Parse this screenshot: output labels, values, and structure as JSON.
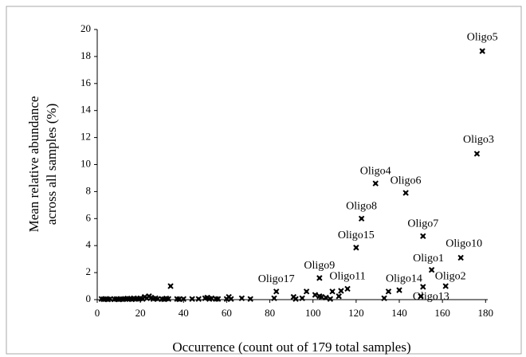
{
  "chart_data": {
    "type": "scatter",
    "xlabel": "Occurrence (count out of 179 total samples)",
    "ylabel": [
      "Mean relative abundance",
      "across all samples (%)"
    ],
    "xlim": [
      0,
      181
    ],
    "ylim": [
      0,
      20
    ],
    "xticks": [
      0,
      20,
      40,
      60,
      80,
      100,
      120,
      140,
      160,
      180
    ],
    "yticks": [
      0,
      2,
      4,
      6,
      8,
      10,
      12,
      14,
      16,
      18,
      20
    ],
    "grid": false,
    "series": [
      {
        "color": "#000000",
        "x": [
          178.5,
          176,
          129,
          143,
          122.5,
          151,
          120,
          168.5,
          155,
          103,
          161.5,
          116,
          140,
          83,
          151,
          2,
          3,
          4,
          5,
          6,
          8,
          9,
          10,
          11,
          12,
          13,
          14,
          15,
          16,
          17,
          18,
          19,
          20,
          21,
          22,
          23,
          24,
          25,
          26,
          27,
          28,
          30,
          31,
          32,
          33,
          34,
          37,
          38,
          40,
          44,
          47,
          50,
          51,
          52,
          53,
          55,
          56,
          60,
          61,
          62,
          67,
          71,
          82,
          91,
          92,
          95,
          97,
          101,
          103,
          104,
          106,
          108,
          109,
          112,
          113,
          133,
          135,
          150
        ],
        "values": [
          18.4,
          10.8,
          8.6,
          7.9,
          6.0,
          4.7,
          3.85,
          3.1,
          2.2,
          1.6,
          1.0,
          0.8,
          0.7,
          0.6,
          0.95,
          0.05,
          0.03,
          0.05,
          0.02,
          0.05,
          0.03,
          0.05,
          0.02,
          0.05,
          0.03,
          0.05,
          0.08,
          0.05,
          0.03,
          0.1,
          0.05,
          0.05,
          0.1,
          0.05,
          0.2,
          0.1,
          0.25,
          0.15,
          0.05,
          0.1,
          0.05,
          0.05,
          0.03,
          0.08,
          0.05,
          1.0,
          0.05,
          0.03,
          0.05,
          0.05,
          0.05,
          0.1,
          0.15,
          0.05,
          0.1,
          0.05,
          0.05,
          0.05,
          0.2,
          0.05,
          0.1,
          0.05,
          0.1,
          0.2,
          0.05,
          0.1,
          0.6,
          0.35,
          0.25,
          0.2,
          0.15,
          0.05,
          0.6,
          0.25,
          0.65,
          0.1,
          0.6,
          0.25
        ],
        "labels": [
          "Oligo5",
          "Oligo3",
          "Oligo4",
          "Oligo6",
          "Oligo8",
          "Oligo7",
          "Oligo15",
          "Oligo10",
          "Oligo1",
          "Oligo9",
          "Oligo2",
          "Oligo11",
          "Oligo14",
          "Oligo17",
          "Oligo13",
          null,
          null,
          null,
          null,
          null,
          null,
          null,
          null,
          null,
          null,
          null,
          null,
          null,
          null,
          null,
          null,
          null,
          null,
          null,
          null,
          null,
          null,
          null,
          null,
          null,
          null,
          null,
          null,
          null,
          null,
          null,
          null,
          null,
          null,
          null,
          null,
          null,
          null,
          null,
          null,
          null,
          null,
          null,
          null,
          null,
          null,
          null,
          null,
          null,
          null,
          null,
          null,
          null,
          null,
          null,
          null,
          null,
          null,
          null,
          null,
          null,
          null,
          null
        ]
      }
    ]
  }
}
